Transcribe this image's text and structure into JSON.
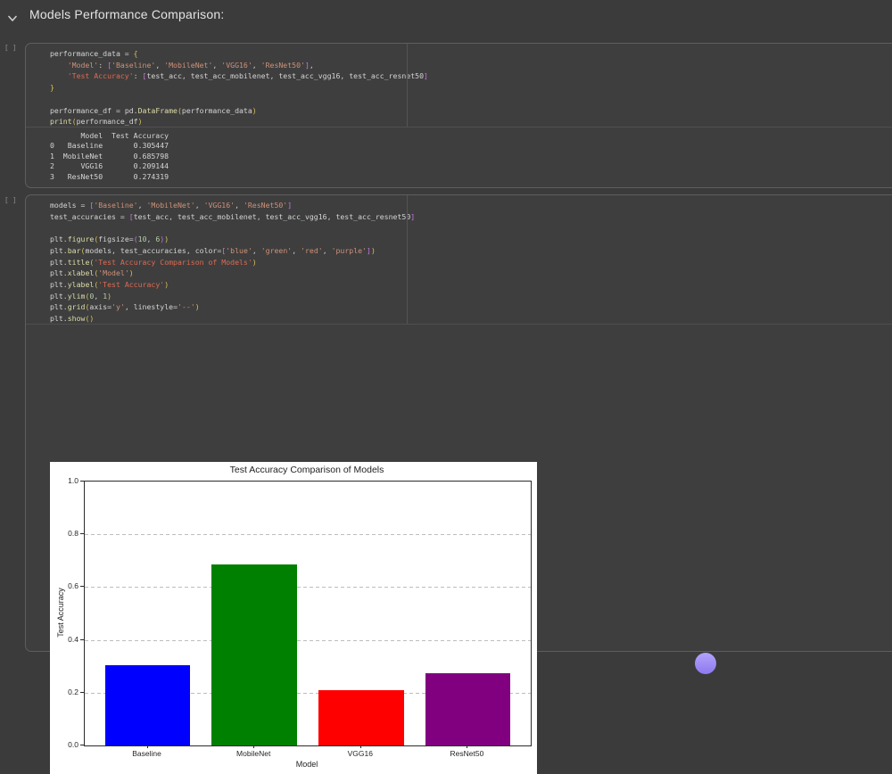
{
  "header": {
    "title": "Models Performance Comparison:"
  },
  "cells": [
    {
      "gutter": "[ ]",
      "code": [
        [
          [
            "v",
            "performance_data"
          ],
          [
            "o",
            " = "
          ],
          [
            "bY",
            "{"
          ]
        ],
        [
          [
            "o",
            "    "
          ],
          [
            "s",
            "'Model'"
          ],
          [
            "o",
            ": "
          ],
          [
            "bP",
            "["
          ],
          [
            "s",
            "'Baseline'"
          ],
          [
            "o",
            ", "
          ],
          [
            "s",
            "'MobileNet'"
          ],
          [
            "o",
            ", "
          ],
          [
            "s",
            "'VGG16'"
          ],
          [
            "o",
            ", "
          ],
          [
            "s",
            "'ResNet50'"
          ],
          [
            "bP",
            "]"
          ],
          [
            "o",
            ","
          ]
        ],
        [
          [
            "o",
            "    "
          ],
          [
            "sr",
            "'Test Accuracy'"
          ],
          [
            "o",
            ": "
          ],
          [
            "bP",
            "["
          ],
          [
            "v",
            "test_acc"
          ],
          [
            "o",
            ", "
          ],
          [
            "v",
            "test_acc_mobilenet"
          ],
          [
            "o",
            ", "
          ],
          [
            "v",
            "test_acc_vgg16"
          ],
          [
            "o",
            ", "
          ],
          [
            "v",
            "test_acc_resnet50"
          ],
          [
            "bP",
            "]"
          ]
        ],
        [
          [
            "bY",
            "}"
          ]
        ],
        [],
        [
          [
            "v",
            "performance_df"
          ],
          [
            "o",
            " = "
          ],
          [
            "v",
            "pd"
          ],
          [
            "o",
            "."
          ],
          [
            "f",
            "DataFrame"
          ],
          [
            "bY",
            "("
          ],
          [
            "v",
            "performance_data"
          ],
          [
            "bY",
            ")"
          ]
        ],
        [
          [
            "f",
            "print"
          ],
          [
            "bY",
            "("
          ],
          [
            "v",
            "performance_df"
          ],
          [
            "bY",
            ")"
          ]
        ]
      ],
      "output_lines": [
        "       Model  Test Accuracy",
        "0   Baseline       0.305447",
        "1  MobileNet       0.685798",
        "2      VGG16       0.209144",
        "3   ResNet50       0.274319"
      ]
    },
    {
      "gutter": "[ ]",
      "code": [
        [
          [
            "v",
            "models"
          ],
          [
            "o",
            " = "
          ],
          [
            "bP",
            "["
          ],
          [
            "s",
            "'Baseline'"
          ],
          [
            "o",
            ", "
          ],
          [
            "s",
            "'MobileNet'"
          ],
          [
            "o",
            ", "
          ],
          [
            "s",
            "'VGG16'"
          ],
          [
            "o",
            ", "
          ],
          [
            "s",
            "'ResNet50'"
          ],
          [
            "bP",
            "]"
          ]
        ],
        [
          [
            "v",
            "test_accuracies"
          ],
          [
            "o",
            " = "
          ],
          [
            "bP",
            "["
          ],
          [
            "v",
            "test_acc"
          ],
          [
            "o",
            ", "
          ],
          [
            "v",
            "test_acc_mobilenet"
          ],
          [
            "o",
            ", "
          ],
          [
            "v",
            "test_acc_vgg16"
          ],
          [
            "o",
            ", "
          ],
          [
            "v",
            "test_acc_resnet50"
          ],
          [
            "bP",
            "]"
          ]
        ],
        [],
        [
          [
            "v",
            "plt"
          ],
          [
            "o",
            "."
          ],
          [
            "f",
            "figure"
          ],
          [
            "bY",
            "("
          ],
          [
            "v",
            "figsize"
          ],
          [
            "o",
            "="
          ],
          [
            "bP",
            "("
          ],
          [
            "n",
            "10"
          ],
          [
            "o",
            ", "
          ],
          [
            "n",
            "6"
          ],
          [
            "bP",
            ")"
          ],
          [
            "bY",
            ")"
          ]
        ],
        [
          [
            "v",
            "plt"
          ],
          [
            "o",
            "."
          ],
          [
            "f",
            "bar"
          ],
          [
            "bY",
            "("
          ],
          [
            "v",
            "models"
          ],
          [
            "o",
            ", "
          ],
          [
            "v",
            "test_accuracies"
          ],
          [
            "o",
            ", "
          ],
          [
            "v",
            "color"
          ],
          [
            "o",
            "="
          ],
          [
            "bP",
            "["
          ],
          [
            "s",
            "'blue'"
          ],
          [
            "o",
            ", "
          ],
          [
            "s",
            "'green'"
          ],
          [
            "o",
            ", "
          ],
          [
            "s",
            "'red'"
          ],
          [
            "o",
            ", "
          ],
          [
            "s",
            "'purple'"
          ],
          [
            "bP",
            "]"
          ],
          [
            "bY",
            ")"
          ]
        ],
        [
          [
            "v",
            "plt"
          ],
          [
            "o",
            "."
          ],
          [
            "f",
            "title"
          ],
          [
            "bY",
            "("
          ],
          [
            "sr",
            "'Test Accuracy Comparison of Models'"
          ],
          [
            "bY",
            ")"
          ]
        ],
        [
          [
            "v",
            "plt"
          ],
          [
            "o",
            "."
          ],
          [
            "f",
            "xlabel"
          ],
          [
            "bY",
            "("
          ],
          [
            "s",
            "'Model'"
          ],
          [
            "bY",
            ")"
          ]
        ],
        [
          [
            "v",
            "plt"
          ],
          [
            "o",
            "."
          ],
          [
            "f",
            "ylabel"
          ],
          [
            "bY",
            "("
          ],
          [
            "sr",
            "'Test Accuracy'"
          ],
          [
            "bY",
            ")"
          ]
        ],
        [
          [
            "v",
            "plt"
          ],
          [
            "o",
            "."
          ],
          [
            "f",
            "ylim"
          ],
          [
            "bY",
            "("
          ],
          [
            "n",
            "0"
          ],
          [
            "o",
            ", "
          ],
          [
            "n",
            "1"
          ],
          [
            "bY",
            ")"
          ]
        ],
        [
          [
            "v",
            "plt"
          ],
          [
            "o",
            "."
          ],
          [
            "f",
            "grid"
          ],
          [
            "bY",
            "("
          ],
          [
            "v",
            "axis"
          ],
          [
            "o",
            "="
          ],
          [
            "s",
            "'y'"
          ],
          [
            "o",
            ", "
          ],
          [
            "v",
            "linestyle"
          ],
          [
            "o",
            "="
          ],
          [
            "s",
            "'--'"
          ],
          [
            "bY",
            ")"
          ]
        ],
        [
          [
            "v",
            "plt"
          ],
          [
            "o",
            "."
          ],
          [
            "f",
            "show"
          ],
          [
            "bY",
            "("
          ],
          [
            "bY",
            ")"
          ]
        ]
      ]
    }
  ],
  "chart_data": {
    "type": "bar",
    "title": "Test Accuracy Comparison of Models",
    "xlabel": "Model",
    "ylabel": "Test Accuracy",
    "categories": [
      "Baseline",
      "MobileNet",
      "VGG16",
      "ResNet50"
    ],
    "values": [
      0.305447,
      0.685798,
      0.209144,
      0.274319
    ],
    "bar_colors": [
      "blue",
      "green",
      "red",
      "purple"
    ],
    "bar_colors_hex": [
      "#0000ff",
      "#008000",
      "#ff0000",
      "#800080"
    ],
    "ylim": [
      0,
      1
    ],
    "yticks": [
      "0.0",
      "0.2",
      "0.4",
      "0.6",
      "0.8",
      "1.0"
    ],
    "grid": {
      "axis": "y",
      "linestyle": "--"
    },
    "legend_visible": false,
    "background": "#ffffff"
  }
}
